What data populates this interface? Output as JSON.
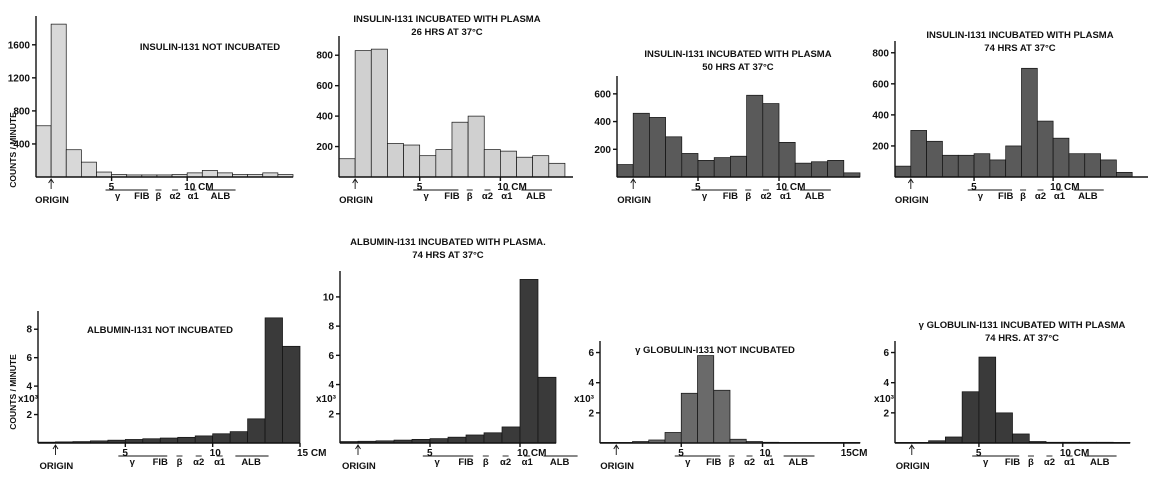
{
  "figure": {
    "y_axis_label": "COUNTS / MINUTE",
    "origin_label": "ORIGIN"
  },
  "chart_data": [
    {
      "type": "bar",
      "title_lines": [
        "INSULIN-I131 NOT INCUBATED"
      ],
      "xlim": [
        0,
        17
      ],
      "xticks": [
        "5",
        "10 CM"
      ],
      "ylim": [
        0,
        1900
      ],
      "yticks": [
        "400",
        "800",
        "1200",
        "1600"
      ],
      "ymultiplier": "",
      "bar_width_cm": 1,
      "values": [
        620,
        1850,
        330,
        180,
        60,
        30,
        25,
        25,
        25,
        30,
        50,
        80,
        50,
        30,
        30,
        50,
        30
      ],
      "markers": [
        "γ",
        "FIB",
        "β",
        "α2",
        "α1",
        "ALB"
      ],
      "tone": "#d8d8d8"
    },
    {
      "type": "bar",
      "title_lines": [
        "INSULIN-I131 INCUBATED WITH PLASMA",
        "26 HRS AT 37°C"
      ],
      "xlim": [
        0,
        14.5
      ],
      "xticks": [
        "5",
        "10 CM"
      ],
      "ylim": [
        0,
        900
      ],
      "yticks": [
        "200",
        "400",
        "600",
        "800"
      ],
      "ymultiplier": "",
      "bar_width_cm": 1,
      "values": [
        120,
        830,
        840,
        220,
        210,
        140,
        180,
        360,
        400,
        180,
        170,
        130,
        140,
        90
      ],
      "markers": [
        "γ",
        "FIB",
        "β",
        "α2",
        "α1",
        "ALB"
      ],
      "tone": "#d0d0d0"
    },
    {
      "type": "bar",
      "title_lines": [
        "INSULIN-I131 INCUBATED WITH PLASMA",
        "50 HRS AT 37°C"
      ],
      "xlim": [
        0,
        15
      ],
      "xticks": [
        "5",
        "10 CM"
      ],
      "ylim": [
        0,
        700
      ],
      "yticks": [
        "200",
        "400",
        "600"
      ],
      "ymultiplier": "",
      "bar_width_cm": 1,
      "values": [
        90,
        460,
        430,
        290,
        170,
        120,
        140,
        150,
        590,
        530,
        250,
        100,
        110,
        120,
        30
      ],
      "markers": [
        "γ",
        "FIB",
        "β",
        "α2",
        "α1",
        "ALB"
      ],
      "tone": "#5a5a5a"
    },
    {
      "type": "bar",
      "title_lines": [
        "INSULIN-I131 INCUBATED WITH PLASMA",
        "74 HRS AT 37°C"
      ],
      "xlim": [
        0,
        16
      ],
      "xticks": [
        "5",
        "10 CM"
      ],
      "ylim": [
        0,
        850
      ],
      "yticks": [
        "200",
        "400",
        "600",
        "800"
      ],
      "ymultiplier": "",
      "bar_width_cm": 1,
      "values": [
        70,
        300,
        230,
        140,
        140,
        150,
        110,
        200,
        700,
        360,
        250,
        150,
        150,
        110,
        30
      ],
      "markers": [
        "γ",
        "FIB",
        "β",
        "α2",
        "α1",
        "ALB"
      ],
      "tone": "#5a5a5a"
    },
    {
      "type": "bar",
      "title_lines": [
        "ALBUMIN-I131 NOT INCUBATED"
      ],
      "xlim": [
        0,
        15
      ],
      "xticks": [
        "5",
        "10",
        "15 CM"
      ],
      "ylim": [
        0,
        9000
      ],
      "yticks": [
        "2",
        "4",
        "6",
        "8"
      ],
      "ymultiplier": "x10³",
      "bar_width_cm": 1,
      "values": [
        60,
        80,
        100,
        150,
        200,
        250,
        300,
        350,
        400,
        500,
        650,
        800,
        1700,
        8800,
        6800
      ],
      "markers": [
        "γ",
        "FIB",
        "β",
        "α2",
        "α1",
        "ALB"
      ],
      "tone": "#3a3a3a"
    },
    {
      "type": "bar",
      "title_lines": [
        "ALBUMIN-I131 INCUBATED WITH PLASMA.",
        "74 HRS AT 37°C"
      ],
      "xlim": [
        0,
        12
      ],
      "xticks": [
        "5",
        "10 CM"
      ],
      "ylim": [
        0,
        11500
      ],
      "yticks": [
        "2",
        "4",
        "6",
        "8",
        "10"
      ],
      "ymultiplier": "x10³",
      "bar_width_cm": 1,
      "values": [
        100,
        120,
        150,
        200,
        250,
        300,
        400,
        550,
        700,
        1100,
        11200,
        4500
      ],
      "markers": [
        "γ",
        "FIB",
        "β",
        "α2",
        "α1",
        "ALB"
      ],
      "tone": "#3a3a3a"
    },
    {
      "type": "bar",
      "title_lines": [
        "γ GLOBULIN-I131 NOT INCUBATED"
      ],
      "xlim": [
        0,
        16
      ],
      "xticks": [
        "5",
        "10",
        "15CM"
      ],
      "ylim": [
        0,
        6500
      ],
      "yticks": [
        "2",
        "4",
        "6"
      ],
      "ymultiplier": "x10³",
      "bar_width_cm": 1,
      "values": [
        0,
        0,
        100,
        200,
        700,
        3300,
        5800,
        3500,
        250,
        100,
        50,
        30,
        30,
        30,
        30,
        0
      ],
      "markers": [
        "γ",
        "FIB",
        "β",
        "α2",
        "α1",
        "ALB"
      ],
      "tone": "#6a6a6a"
    },
    {
      "type": "bar",
      "title_lines": [
        "γ GLOBULIN-I131 INCUBATED WITH PLASMA",
        "74 HRS. AT 37°C"
      ],
      "xlim": [
        0,
        14
      ],
      "xticks": [
        "5",
        "10 CM"
      ],
      "ylim": [
        0,
        6500
      ],
      "yticks": [
        "2",
        "4",
        "6"
      ],
      "ymultiplier": "x10³",
      "bar_width_cm": 1,
      "values": [
        0,
        0,
        150,
        400,
        3400,
        5700,
        2000,
        600,
        100,
        50,
        50,
        50,
        50,
        0
      ],
      "markers": [
        "γ",
        "FIB",
        "β",
        "α2",
        "α1",
        "ALB"
      ],
      "tone": "#3a3a3a"
    }
  ]
}
